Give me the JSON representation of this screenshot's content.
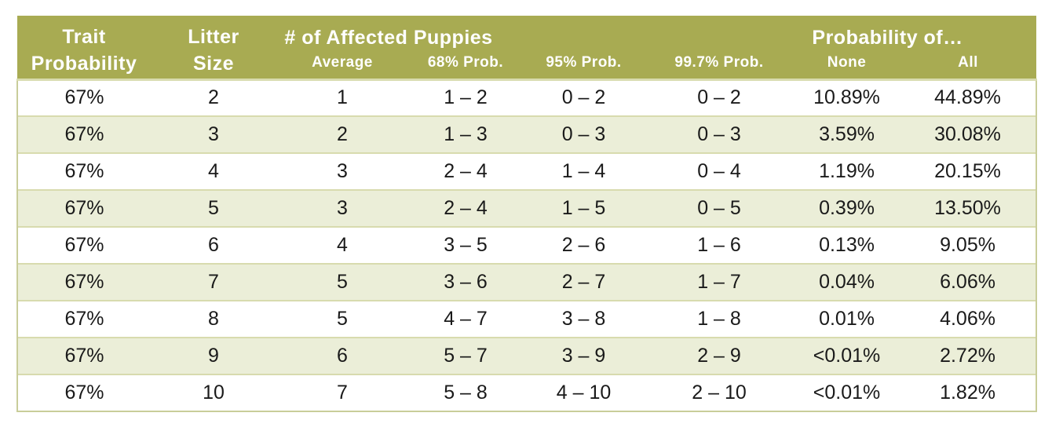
{
  "table": {
    "header": {
      "trait_probability": [
        "Trait",
        "Probability"
      ],
      "litter_size": [
        "Litter",
        "Size"
      ],
      "affected_group": "# of Affected Puppies",
      "probability_group": "Probability of…",
      "sub_average": "Average",
      "sub_68": "68% Prob.",
      "sub_95": "95% Prob.",
      "sub_997": "99.7% Prob.",
      "sub_none": "None",
      "sub_all": "All"
    }
  },
  "chart_data": {
    "type": "table",
    "title": "",
    "columns": [
      "Trait Probability",
      "Litter Size",
      "Average",
      "68% Prob.",
      "95% Prob.",
      "99.7% Prob.",
      "None",
      "All"
    ],
    "column_groups": [
      {
        "label": "# of Affected Puppies",
        "columns": [
          "Average",
          "68% Prob.",
          "95% Prob.",
          "99.7% Prob."
        ]
      },
      {
        "label": "Probability of…",
        "columns": [
          "None",
          "All"
        ]
      }
    ],
    "rows": [
      [
        "67%",
        "2",
        "1",
        "1 – 2",
        "0 – 2",
        "0 – 2",
        "10.89%",
        "44.89%"
      ],
      [
        "67%",
        "3",
        "2",
        "1 – 3",
        "0 – 3",
        "0 – 3",
        "3.59%",
        "30.08%"
      ],
      [
        "67%",
        "4",
        "3",
        "2 – 4",
        "1 – 4",
        "0 – 4",
        "1.19%",
        "20.15%"
      ],
      [
        "67%",
        "5",
        "3",
        "2 – 4",
        "1 – 5",
        "0 – 5",
        "0.39%",
        "13.50%"
      ],
      [
        "67%",
        "6",
        "4",
        "3 – 5",
        "2 – 6",
        "1 – 6",
        "0.13%",
        "9.05%"
      ],
      [
        "67%",
        "7",
        "5",
        "3 – 6",
        "2 – 7",
        "1 – 7",
        "0.04%",
        "6.06%"
      ],
      [
        "67%",
        "8",
        "5",
        "4 – 7",
        "3 – 8",
        "1 – 8",
        "0.01%",
        "4.06%"
      ],
      [
        "67%",
        "9",
        "6",
        "5 – 7",
        "3 – 9",
        "2 – 9",
        "<0.01%",
        "2.72%"
      ],
      [
        "67%",
        "10",
        "7",
        "5 – 8",
        "4 – 10",
        "2 – 10",
        "<0.01%",
        "1.82%"
      ]
    ]
  },
  "colors": {
    "page_bg": "#ffffff",
    "header_bg": "#a8ab52",
    "header_text": "#ffffff",
    "row_bg": "#ffffff",
    "row_alt_bg": "#ebeed8",
    "divider": "#d8dbae",
    "outer_border": "#c9cd9a",
    "body_text": "#1a1a1a"
  }
}
